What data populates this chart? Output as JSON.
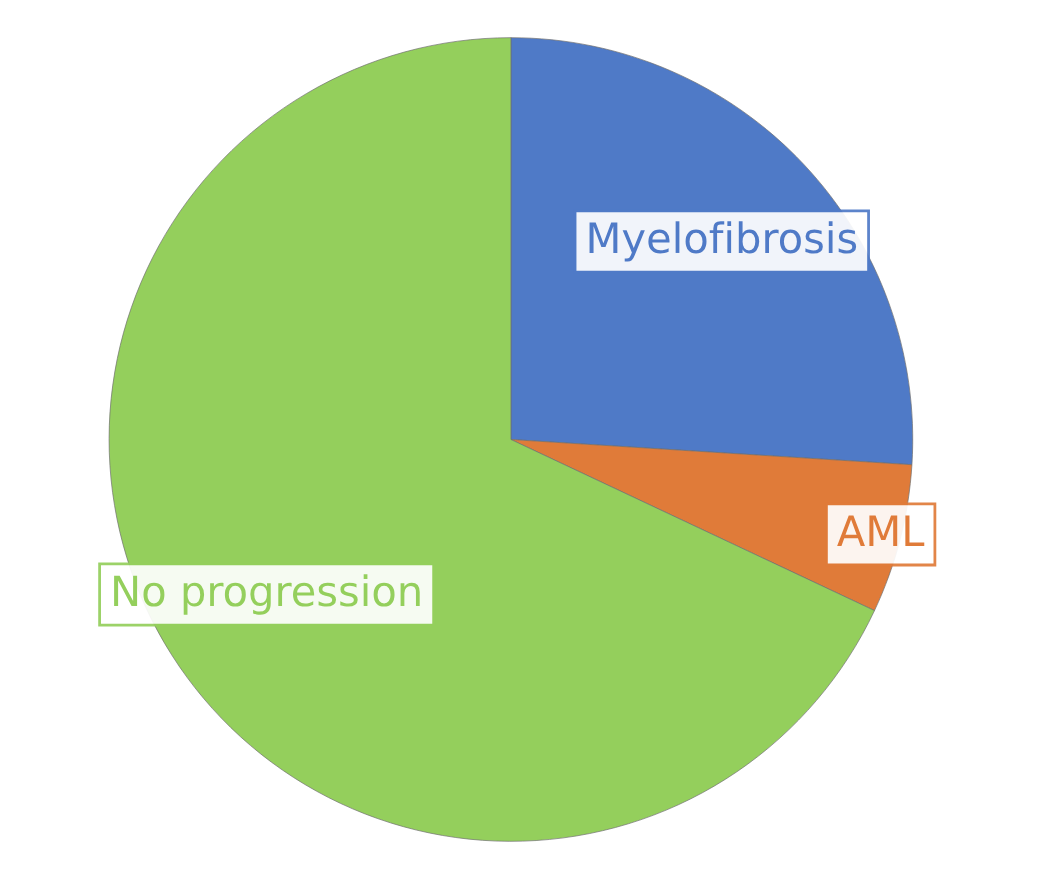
{
  "chart_data": {
    "type": "pie",
    "categories": [
      "Myelofibrosis",
      "AML",
      "No progression"
    ],
    "values": [
      26,
      6,
      68
    ],
    "colors": [
      "#4f7ac7",
      "#e07b39",
      "#94cf5c"
    ]
  }
}
